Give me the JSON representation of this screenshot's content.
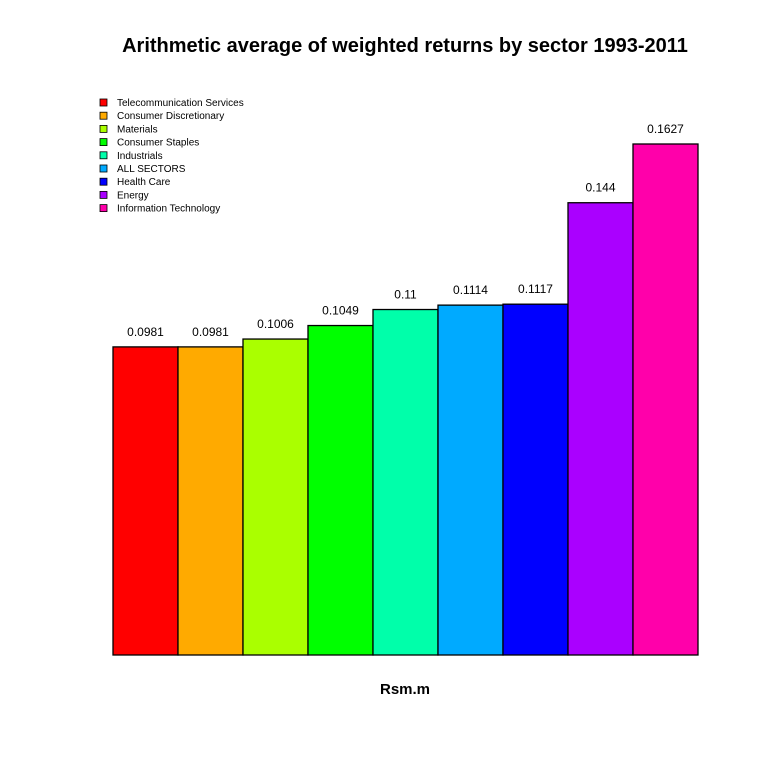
{
  "chart_data": {
    "type": "bar",
    "title": "Arithmetic average of weighted returns by sector 1993-2011",
    "xlabel": "Rsm.m",
    "ylabel": "",
    "ylim": [
      0,
      0.1627
    ],
    "grid": false,
    "legend_position": "top-left",
    "categories": [
      "Telecommunication Services",
      "Consumer Discretionary",
      "Materials",
      "Consumer Staples",
      "Industrials",
      "ALL SECTORS",
      "Health Care",
      "Energy",
      "Information Technology"
    ],
    "values": [
      0.0981,
      0.0981,
      0.1006,
      0.1049,
      0.11,
      0.1114,
      0.1117,
      0.144,
      0.1627
    ],
    "value_labels": [
      "0.0981",
      "0.0981",
      "0.1006",
      "0.1049",
      "0.11",
      "0.1114",
      "0.1117",
      "0.144",
      "0.1627"
    ],
    "colors": [
      "#ff0000",
      "#ffaa00",
      "#aaff00",
      "#00ff00",
      "#00ffaa",
      "#00aaff",
      "#0000ff",
      "#aa00ff",
      "#ff00aa"
    ]
  }
}
